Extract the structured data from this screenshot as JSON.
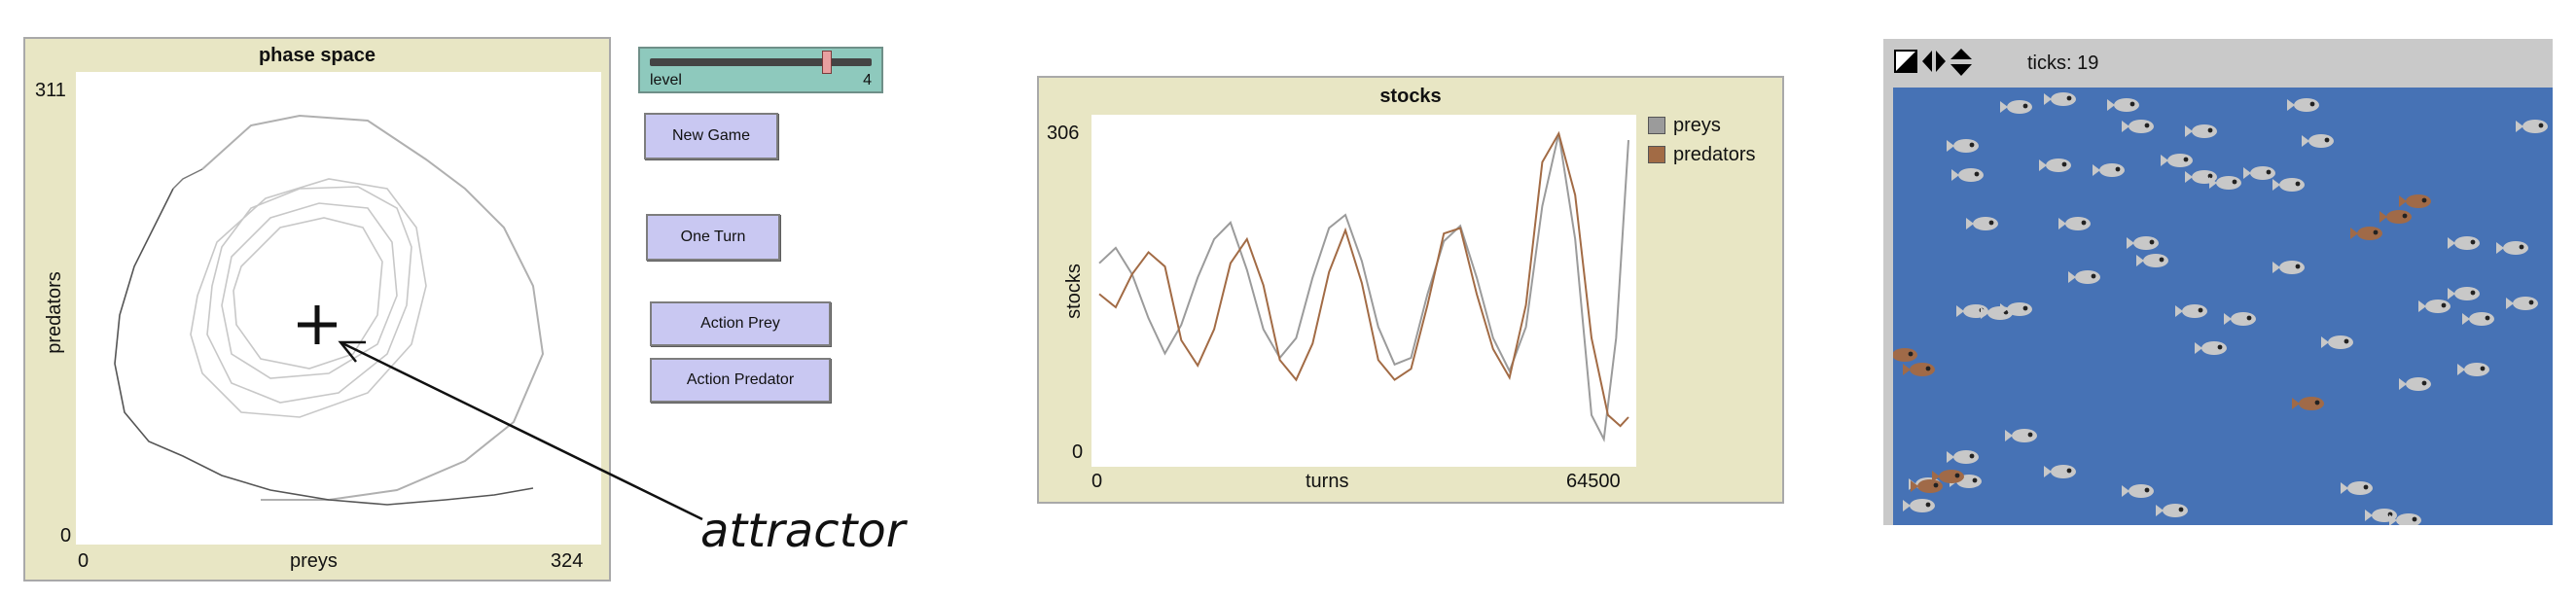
{
  "phase_panel": {
    "title": "phase space",
    "y_max": "311",
    "y_min": "0",
    "x_min": "0",
    "x_max": "324",
    "xlabel": "preys",
    "ylabel": "predators"
  },
  "annotation": {
    "text": "attractor"
  },
  "controls": {
    "slider_label": "level",
    "slider_value": "4",
    "slider_fraction": 0.8,
    "new_game": "New Game",
    "one_turn": "One Turn",
    "action_prey": "Action Prey",
    "action_predator": "Action Predator"
  },
  "chart_data": {
    "type": "line",
    "title": "stocks",
    "xlabel": "turns",
    "ylabel": "stocks",
    "xlim": [
      0,
      64500
    ],
    "ylim": [
      0,
      306
    ],
    "x_tick_labels": [
      "0",
      "64500"
    ],
    "y_tick_labels": [
      "0",
      "306"
    ],
    "legend_placement": "right",
    "series": [
      {
        "name": "preys",
        "color": "#9b9b9b",
        "points": [
          [
            0,
            178
          ],
          [
            2000,
            192
          ],
          [
            4000,
            168
          ],
          [
            6000,
            128
          ],
          [
            8000,
            96
          ],
          [
            10000,
            122
          ],
          [
            12000,
            165
          ],
          [
            14000,
            200
          ],
          [
            16000,
            215
          ],
          [
            18000,
            172
          ],
          [
            20000,
            118
          ],
          [
            22000,
            92
          ],
          [
            24000,
            110
          ],
          [
            26000,
            165
          ],
          [
            28000,
            210
          ],
          [
            30000,
            222
          ],
          [
            32000,
            180
          ],
          [
            34000,
            120
          ],
          [
            36000,
            86
          ],
          [
            38000,
            92
          ],
          [
            40000,
            150
          ],
          [
            42000,
            198
          ],
          [
            44000,
            212
          ],
          [
            46000,
            165
          ],
          [
            48000,
            110
          ],
          [
            50000,
            80
          ],
          [
            52000,
            120
          ],
          [
            54000,
            230
          ],
          [
            56000,
            296
          ],
          [
            58000,
            200
          ],
          [
            60000,
            40
          ],
          [
            61500,
            18
          ],
          [
            63000,
            110
          ],
          [
            64500,
            290
          ]
        ]
      },
      {
        "name": "predators",
        "color": "#a26b45",
        "points": [
          [
            0,
            150
          ],
          [
            2000,
            138
          ],
          [
            4000,
            168
          ],
          [
            6000,
            188
          ],
          [
            8000,
            175
          ],
          [
            10000,
            108
          ],
          [
            12000,
            85
          ],
          [
            14000,
            118
          ],
          [
            16000,
            178
          ],
          [
            18000,
            200
          ],
          [
            20000,
            158
          ],
          [
            22000,
            90
          ],
          [
            24000,
            72
          ],
          [
            26000,
            105
          ],
          [
            28000,
            170
          ],
          [
            30000,
            208
          ],
          [
            32000,
            160
          ],
          [
            34000,
            90
          ],
          [
            36000,
            72
          ],
          [
            38000,
            82
          ],
          [
            40000,
            140
          ],
          [
            42000,
            205
          ],
          [
            44000,
            210
          ],
          [
            46000,
            150
          ],
          [
            48000,
            100
          ],
          [
            50000,
            74
          ],
          [
            52000,
            140
          ],
          [
            54000,
            270
          ],
          [
            56000,
            296
          ],
          [
            58000,
            240
          ],
          [
            60000,
            110
          ],
          [
            62000,
            40
          ],
          [
            63500,
            30
          ],
          [
            64500,
            38
          ]
        ]
      }
    ]
  },
  "world": {
    "ticks_text": "ticks: 19",
    "colors": {
      "prey": "#c8c8c8",
      "predator": "#a06a48",
      "ocean": "#4672b5"
    }
  }
}
